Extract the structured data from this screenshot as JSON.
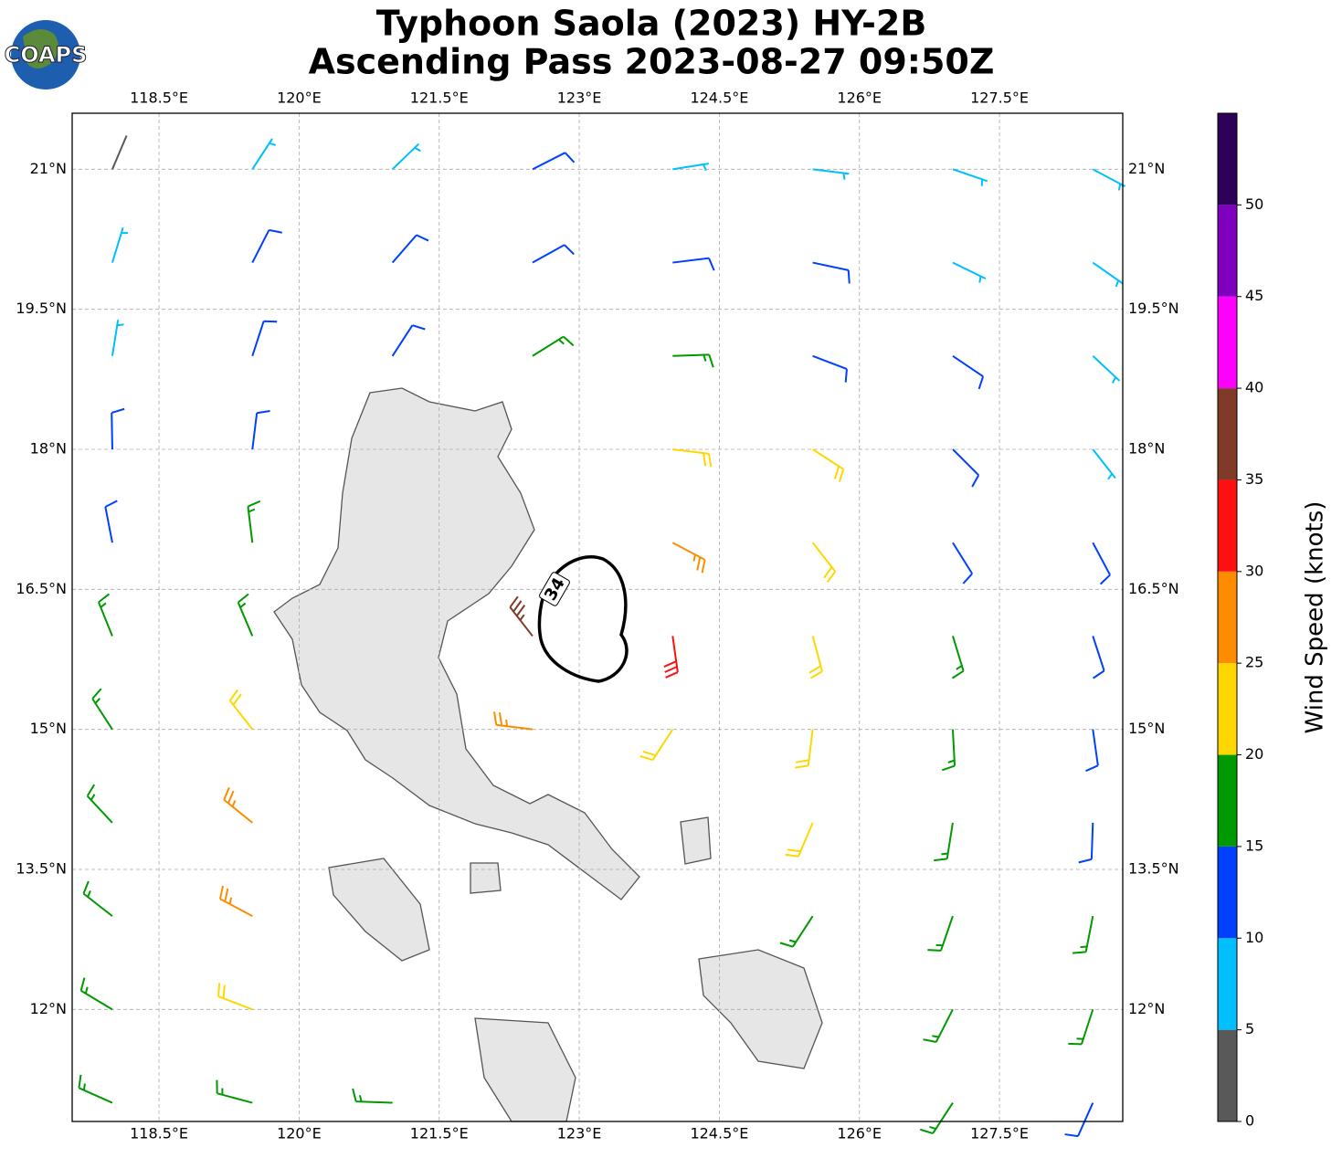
{
  "header": {
    "logo": "COAPS"
  },
  "chart_data": {
    "type": "barbs",
    "title": "Typhoon Saola (2023) HY-2B",
    "subtitle": "Ascending Pass 2023-08-27 09:50Z",
    "xlim": [
      117.57,
      128.82
    ],
    "ylim": [
      10.8,
      21.6
    ],
    "xticks": [
      {
        "value": 118.5,
        "label": "118.5°E"
      },
      {
        "value": 120,
        "label": "120°E"
      },
      {
        "value": 121.5,
        "label": "121.5°E"
      },
      {
        "value": 123,
        "label": "123°E"
      },
      {
        "value": 124.5,
        "label": "124.5°E"
      },
      {
        "value": 126,
        "label": "126°E"
      },
      {
        "value": 127.5,
        "label": "127.5°E"
      }
    ],
    "yticks": [
      {
        "value": 21,
        "label": "21°N"
      },
      {
        "value": 19.5,
        "label": "19.5°N"
      },
      {
        "value": 18,
        "label": "18°N"
      },
      {
        "value": 16.5,
        "label": "16.5°N"
      },
      {
        "value": 15,
        "label": "15°N"
      },
      {
        "value": 13.5,
        "label": "13.5°N"
      },
      {
        "value": 12,
        "label": "12°N"
      }
    ],
    "grid": true,
    "contour_label": "34",
    "lons": [
      118,
      119.5,
      121,
      122.5,
      124,
      125.5,
      127,
      128.5
    ],
    "rows": [
      {
        "lat": 21,
        "speed": [
          3,
          8,
          8,
          10,
          9,
          8,
          7,
          6
        ],
        "dir": [
          23,
          33,
          46,
          63,
          81,
          97,
          109,
          118
        ]
      },
      {
        "lat": 20,
        "speed": [
          7,
          11,
          12,
          14,
          13,
          12,
          9,
          8
        ],
        "dir": [
          17,
          27,
          41,
          61,
          83,
          102,
          116,
          125
        ]
      },
      {
        "lat": 19,
        "speed": [
          8,
          12,
          13,
          18,
          17,
          13,
          11,
          9
        ],
        "dir": [
          9,
          18,
          33,
          58,
          88,
          111,
          124,
          133
        ]
      },
      {
        "lat": 18,
        "speed": [
          11,
          13,
          null,
          null,
          23,
          22,
          10,
          9
        ],
        "dir": [
          359,
          7,
          null,
          null,
          97,
          123,
          135,
          142
        ]
      },
      {
        "lat": 17,
        "speed": [
          13,
          16,
          null,
          null,
          28,
          22,
          13,
          12
        ],
        "dir": [
          349,
          353,
          null,
          null,
          118,
          142,
          148,
          152
        ]
      },
      {
        "lat": 16,
        "speed": [
          16,
          18,
          null,
          37,
          33,
          23,
          18,
          14
        ],
        "dir": [
          338,
          337,
          null,
          322,
          172,
          165,
          163,
          162
        ]
      },
      {
        "lat": 15,
        "speed": [
          18,
          22,
          null,
          28,
          24,
          22,
          18,
          14
        ],
        "dir": [
          327,
          322,
          null,
          277,
          213,
          187,
          177,
          172
        ]
      },
      {
        "lat": 14,
        "speed": [
          18,
          27,
          null,
          null,
          null,
          21,
          17,
          14
        ],
        "dir": [
          317,
          309,
          null,
          null,
          null,
          203,
          189,
          182
        ]
      },
      {
        "lat": 13,
        "speed": [
          18,
          26,
          null,
          null,
          null,
          17,
          17,
          16
        ],
        "dir": [
          308,
          298,
          null,
          null,
          null,
          213,
          199,
          191
        ]
      },
      {
        "lat": 12,
        "speed": [
          17,
          22,
          null,
          null,
          null,
          null,
          18,
          16
        ],
        "dir": [
          301,
          291,
          null,
          null,
          null,
          null,
          207,
          198
        ]
      },
      {
        "lat": 11,
        "speed": [
          17,
          18,
          16,
          null,
          null,
          null,
          18,
          13
        ],
        "dir": [
          294,
          285,
          272,
          null,
          null,
          null,
          213,
          204
        ]
      }
    ],
    "colorbar": {
      "label": "Wind Speed (knots)",
      "bounds": [
        0,
        5,
        10,
        15,
        20,
        25,
        30,
        35,
        40,
        45,
        50,
        55
      ],
      "colors": [
        "#595959",
        "#00bfff",
        "#0040ff",
        "#009900",
        "#ffd700",
        "#ff8c00",
        "#ff1010",
        "#7f3b28",
        "#ff00ff",
        "#8000c0",
        "#2e0057"
      ],
      "ticks": [
        0,
        5,
        10,
        15,
        20,
        25,
        30,
        35,
        40,
        45,
        50
      ]
    }
  }
}
